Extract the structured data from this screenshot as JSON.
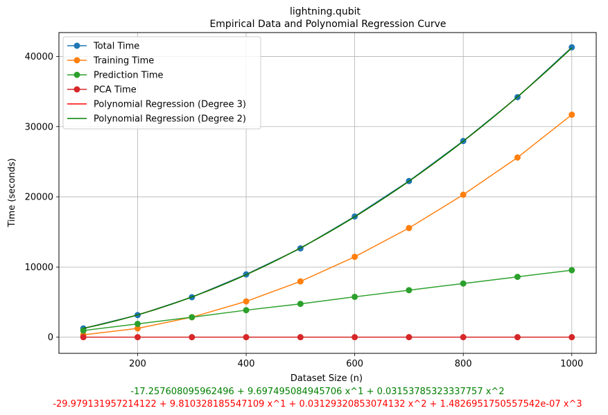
{
  "chart_data": {
    "type": "line",
    "title": "lightning.qubit",
    "subtitle": "Empirical Data and Polynomial Regression Curve",
    "xlabel": "Dataset Size (n)",
    "ylabel": "Time (seconds)",
    "xlim": [
      55,
      1045
    ],
    "ylim": [
      -2300,
      43400
    ],
    "xticks": [
      200,
      400,
      600,
      800,
      1000
    ],
    "yticks": [
      0,
      10000,
      20000,
      30000,
      40000
    ],
    "grid": true,
    "legend_position": "top-left",
    "x": [
      100,
      200,
      300,
      400,
      500,
      600,
      700,
      800,
      900,
      1000
    ],
    "series": [
      {
        "name": "Total Time",
        "color": "#1f77b4",
        "marker": "circle",
        "values": [
          1250,
          3150,
          5700,
          8950,
          12650,
          17200,
          22250,
          27950,
          34200,
          41300
        ]
      },
      {
        "name": "Training Time",
        "color": "#ff7f0e",
        "marker": "circle",
        "values": [
          330,
          1250,
          2850,
          5100,
          7950,
          11450,
          15550,
          20300,
          25600,
          31700
        ]
      },
      {
        "name": "Prediction Time",
        "color": "#2ca02c",
        "marker": "circle",
        "values": [
          950,
          1900,
          2850,
          3850,
          4750,
          5750,
          6700,
          7650,
          8600,
          9550
        ]
      },
      {
        "name": "PCA Time",
        "color": "#d62728",
        "marker": "circle",
        "values": [
          5,
          5,
          5,
          5,
          5,
          5,
          5,
          5,
          5,
          5
        ]
      }
    ],
    "regressions": [
      {
        "name": "Polynomial Regression (Degree 3)",
        "color": "#ff0000",
        "coeffs": [
          -29.979131957214122,
          9.810328185547109,
          0.03129320853074132,
          1.4826951750557542e-07
        ]
      },
      {
        "name": "Polynomial Regression (Degree 2)",
        "color": "#008000",
        "coeffs": [
          -17.257608095962496,
          9.697495084945706,
          0.03153785323337757
        ]
      }
    ],
    "equations": [
      {
        "text": "-17.257608095962496 + 9.697495084945706 x^1 + 0.03153785323337757 x^2",
        "color": "#008000"
      },
      {
        "text": "-29.979131957214122 + 9.810328185547109 x^1 + 0.03129320853074132 x^2 + 1.4826951750557542e-07 x^3",
        "color": "#ff0000"
      }
    ]
  }
}
